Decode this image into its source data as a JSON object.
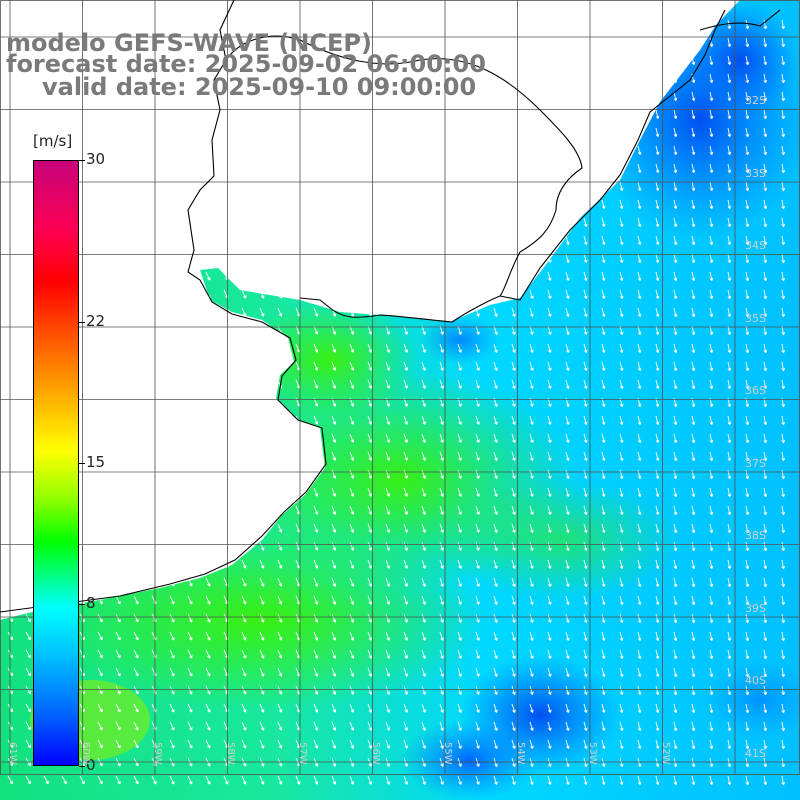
{
  "title": {
    "line1": "modelo GEFS-WAVE (NCEP)",
    "line2": "forecast date: 2025-09-02 06:00:00",
    "line3": "valid date: 2025-09-10 09:00:00"
  },
  "colorbar": {
    "unit": "[m/s]",
    "ticks": [
      "30",
      "22",
      "15",
      "8",
      "0"
    ],
    "tick_values": [
      30,
      22,
      15,
      8,
      0
    ],
    "range": [
      0,
      30
    ]
  },
  "lat_labels": [
    "32S",
    "33S",
    "34S",
    "35S",
    "36S",
    "37S",
    "38S",
    "39S",
    "40S",
    "41S"
  ],
  "lon_labels": [
    "61W",
    "60W",
    "59W",
    "58W",
    "57W",
    "56W",
    "55W",
    "54W",
    "53W",
    "52W"
  ],
  "colors": {
    "land": "#ffffff",
    "grid": "#505050",
    "arrows": "#ffffff",
    "title_text": "#7a7a7a"
  }
}
